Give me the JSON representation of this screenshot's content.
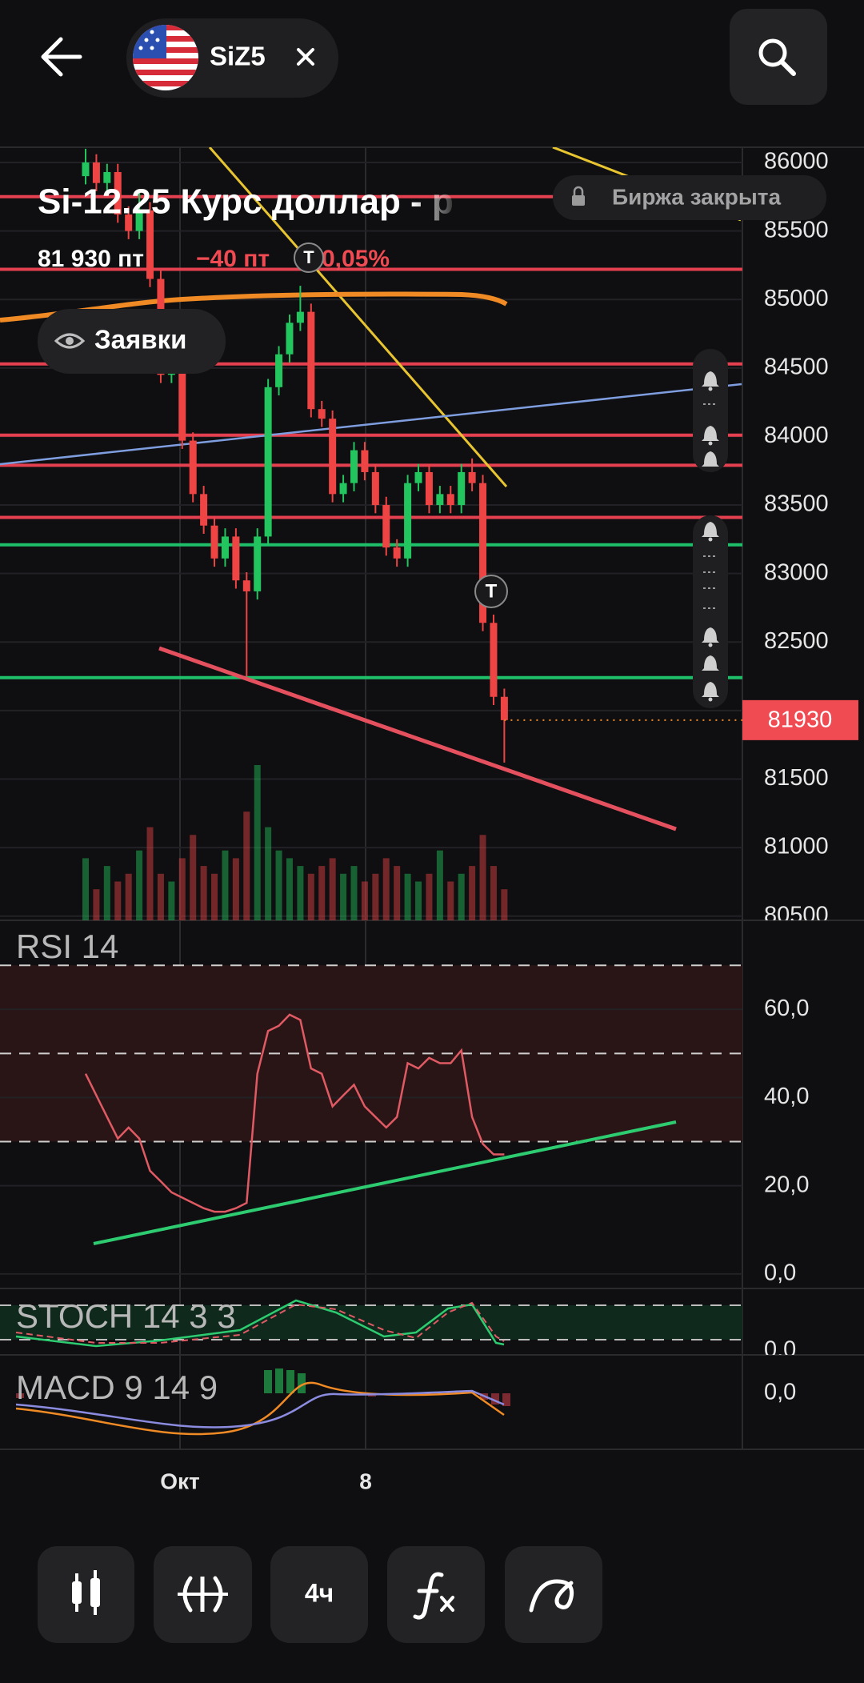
{
  "header": {
    "ticker": "SiZ5",
    "title": "Si-12.25 Курс доллар - р",
    "price": "81 930 пт",
    "change": "−40 пт",
    "change_pct": "0,05%",
    "status": "Биржа закрыта",
    "orders": "Заявки"
  },
  "chart": {
    "type": "candlestick",
    "ylim": [
      80469,
      86111
    ],
    "yticks": [
      80500,
      81000,
      81500,
      82000,
      82500,
      83000,
      83500,
      84000,
      84500,
      85000,
      85500,
      86000
    ],
    "up_color": "#22c55e",
    "down_color": "#ef4444",
    "last_price": 81930,
    "trade_marker": "T",
    "candles": {
      "open": [
        85900,
        86000,
        85850,
        85930,
        85620,
        85500,
        85650,
        85150,
        84450,
        84480,
        83970,
        83580,
        83350,
        83110,
        83270,
        82950,
        82870,
        83270,
        84360,
        84600,
        84830,
        84910,
        84200,
        84130,
        83580,
        83660,
        83900,
        83740,
        83500,
        83190,
        83110,
        83660,
        83740,
        83500,
        83580,
        83500,
        83740,
        83660,
        82640,
        82100
      ],
      "high": [
        86100,
        86060,
        85990,
        85990,
        85680,
        85800,
        85710,
        85210,
        84600,
        84540,
        84030,
        83640,
        83410,
        83330,
        83330,
        83010,
        83330,
        84420,
        84660,
        84890,
        85100,
        84970,
        84260,
        84190,
        83720,
        83960,
        83960,
        83800,
        83560,
        83250,
        83720,
        83800,
        83800,
        83640,
        83640,
        83800,
        83840,
        83720,
        82700,
        82160
      ],
      "low": [
        85840,
        85790,
        85790,
        85560,
        85440,
        85440,
        85090,
        84390,
        84390,
        83910,
        83520,
        83290,
        83050,
        83050,
        82890,
        82250,
        82810,
        83210,
        84300,
        84540,
        84770,
        84140,
        84070,
        83520,
        83520,
        83600,
        83680,
        83440,
        83130,
        83050,
        83050,
        83600,
        83440,
        83440,
        83440,
        83440,
        83600,
        82580,
        82040,
        81620
      ],
      "close": [
        86000,
        85850,
        85930,
        85620,
        85500,
        85650,
        85150,
        84450,
        84480,
        83970,
        83580,
        83350,
        83110,
        83270,
        82950,
        82870,
        83270,
        84360,
        84600,
        84830,
        84910,
        84200,
        84130,
        83580,
        83660,
        83900,
        83740,
        83500,
        83190,
        83110,
        83660,
        83740,
        83500,
        83580,
        83500,
        83740,
        83660,
        82640,
        82100,
        81930
      ]
    },
    "volume": [
      40,
      20,
      35,
      25,
      30,
      45,
      60,
      30,
      25,
      40,
      55,
      35,
      30,
      45,
      40,
      70,
      100,
      60,
      45,
      40,
      35,
      30,
      35,
      40,
      30,
      35,
      25,
      30,
      40,
      35,
      30,
      25,
      30,
      45,
      25,
      30,
      35,
      55,
      35,
      20
    ],
    "levels": [
      {
        "price": 85750,
        "color": "#e5404f"
      },
      {
        "price": 85220,
        "color": "#e5404f"
      },
      {
        "price": 84530,
        "color": "#e5404f"
      },
      {
        "price": 84010,
        "color": "#e5404f"
      },
      {
        "price": 83790,
        "color": "#e5404f"
      },
      {
        "price": 83410,
        "color": "#e5404f"
      },
      {
        "price": 83210,
        "color": "#1fbf6a"
      },
      {
        "price": 82240,
        "color": "#1fbf6a"
      }
    ],
    "x_labels": [
      "Окт",
      "8"
    ]
  },
  "rsi": {
    "title": "RSI 14",
    "ylim": [
      -3.3,
      80.2
    ],
    "yticks": [
      {
        "value": 0,
        "label": "0,0"
      },
      {
        "value": 20,
        "label": "20,0"
      },
      {
        "value": 40,
        "label": "40,0"
      },
      {
        "value": 60,
        "label": "60,0"
      }
    ],
    "bands": [
      30,
      50,
      70
    ],
    "color": "#e05a64",
    "values": [
      45.4,
      40.5,
      35.6,
      30.7,
      33.2,
      30.7,
      23.4,
      21.0,
      18.5,
      17.3,
      16.1,
      14.9,
      14.1,
      14.1,
      14.9,
      16.1,
      45.4,
      55.1,
      56.3,
      58.8,
      57.6,
      46.6,
      45.4,
      38.0,
      40.5,
      42.9,
      38.0,
      35.6,
      33.2,
      35.6,
      47.8,
      46.6,
      49.0,
      47.8,
      47.8,
      50.7,
      35.6,
      29.5,
      27.1,
      27.1
    ]
  },
  "stoch": {
    "title": "STOCH 14 3 3",
    "ytick": {
      "value": 0,
      "label": "0,0"
    }
  },
  "macd": {
    "title": "MACD 9 14 9",
    "ytick": {
      "value": 0,
      "label": "0,0"
    }
  },
  "toolbar": {
    "interval": "4ч"
  }
}
